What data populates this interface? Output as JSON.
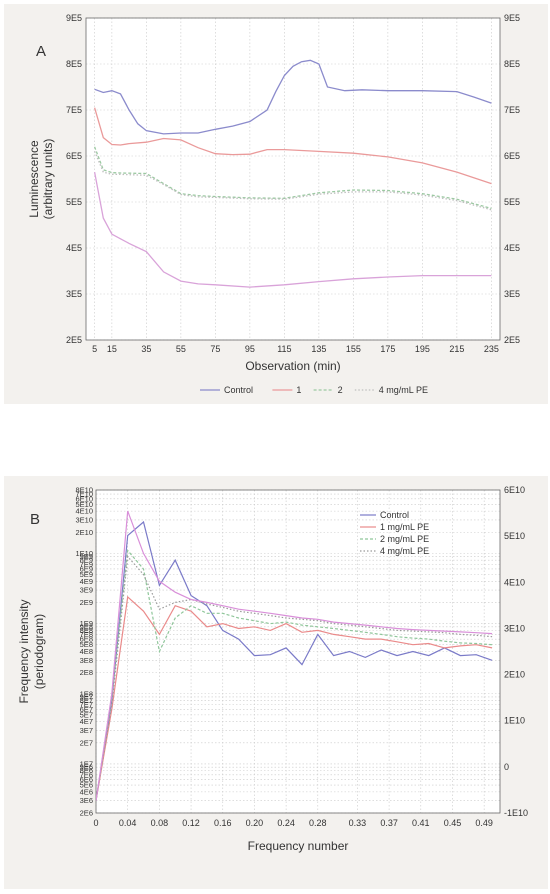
{
  "chart_data": [
    {
      "panel": "A",
      "type": "line",
      "xlabel": "Observation (min)",
      "ylabel": "Luminescence",
      "ylabel2": "(arbitrary units)",
      "xlim": [
        0,
        240
      ],
      "ylim": [
        200000,
        900000
      ],
      "xticks": [
        5,
        15,
        35,
        55,
        75,
        95,
        115,
        135,
        155,
        175,
        195,
        215,
        235
      ],
      "xtick_labels": [
        "5",
        "15",
        "35",
        "55",
        "75",
        "95",
        "115",
        "135",
        "155",
        "175",
        "195",
        "215",
        "235"
      ],
      "yticks": [
        200000,
        300000,
        400000,
        500000,
        600000,
        700000,
        800000,
        900000
      ],
      "ytick_labels": [
        "2E5",
        "3E5",
        "4E5",
        "5E5",
        "6E5",
        "7E5",
        "8E5",
        "9E5"
      ],
      "legend_position": "bottom",
      "legend_entries": [
        "Control",
        "1",
        "2",
        "4 mg/mL PE"
      ],
      "series": [
        {
          "name": "Control",
          "color": "#8b8bcc",
          "dash": "",
          "x": [
            5,
            10,
            15,
            20,
            25,
            30,
            35,
            45,
            55,
            65,
            75,
            85,
            95,
            105,
            110,
            115,
            120,
            125,
            130,
            135,
            140,
            150,
            160,
            175,
            195,
            215,
            225,
            235
          ],
          "y": [
            745000,
            738000,
            742000,
            735000,
            700000,
            670000,
            655000,
            648000,
            650000,
            650000,
            658000,
            665000,
            675000,
            700000,
            740000,
            775000,
            795000,
            805000,
            808000,
            800000,
            750000,
            742000,
            744000,
            742000,
            742000,
            740000,
            728000,
            715000
          ]
        },
        {
          "name": "1",
          "color": "#ea9a9a",
          "dash": "",
          "x": [
            5,
            10,
            15,
            20,
            25,
            35,
            45,
            55,
            65,
            75,
            85,
            95,
            105,
            115,
            125,
            135,
            155,
            175,
            195,
            215,
            235
          ],
          "y": [
            705000,
            640000,
            625000,
            624000,
            627000,
            630000,
            638000,
            635000,
            618000,
            605000,
            603000,
            604000,
            614000,
            614000,
            612000,
            610000,
            606000,
            598000,
            585000,
            565000,
            540000
          ]
        },
        {
          "name": "2",
          "color": "#9cc9a2",
          "dash": "3 2",
          "x": [
            5,
            10,
            15,
            20,
            35,
            45,
            55,
            65,
            75,
            95,
            115,
            135,
            155,
            175,
            195,
            215,
            235
          ],
          "y": [
            620000,
            570000,
            564000,
            563000,
            562000,
            540000,
            518000,
            514000,
            512000,
            509000,
            508000,
            520000,
            526000,
            525000,
            518000,
            506000,
            486000
          ]
        },
        {
          "name": "4 mg/mL PE",
          "color": "#bfbfbf",
          "dash": "1.5 2",
          "x": [
            5,
            10,
            15,
            20,
            35,
            45,
            55,
            65,
            75,
            95,
            115,
            135,
            155,
            175,
            195,
            215,
            235
          ],
          "y": [
            610000,
            565000,
            560000,
            560000,
            558000,
            538000,
            516000,
            511000,
            510000,
            507000,
            506000,
            517000,
            522000,
            522000,
            515000,
            503000,
            483000
          ]
        },
        {
          "name": "",
          "color": "#d9a3d9",
          "dash": "",
          "x": [
            5,
            10,
            15,
            20,
            25,
            35,
            45,
            55,
            65,
            75,
            95,
            115,
            135,
            155,
            175,
            195,
            215,
            235
          ],
          "y": [
            565000,
            465000,
            430000,
            420000,
            410000,
            392000,
            348000,
            328000,
            322000,
            320000,
            315000,
            320000,
            327000,
            333000,
            337000,
            340000,
            340000,
            340000
          ]
        }
      ]
    },
    {
      "panel": "B",
      "type": "line",
      "xlabel": "Frequency number",
      "ylabel": "Frequency intensity",
      "ylabel2": "(periodogram)",
      "xlim": [
        0,
        0.51
      ],
      "xticks": [
        0,
        0.04,
        0.08,
        0.12,
        0.16,
        0.2,
        0.24,
        0.28,
        0.33,
        0.37,
        0.41,
        0.45,
        0.49
      ],
      "xtick_labels": [
        "0",
        "0.04",
        "0.08",
        "0.12",
        "0.16",
        "0.20",
        "0.24",
        "0.28",
        "0.33",
        "0.37",
        "0.41",
        "0.45",
        "0.49"
      ],
      "left_axis_scale": "log",
      "left_ylim": [
        2000000,
        80000000000
      ],
      "left_tick_labels": [
        {
          "v": 80000000000.0,
          "t": "8E10"
        },
        {
          "v": 70000000000.0,
          "t": "7E10"
        },
        {
          "v": 60000000000.0,
          "t": "6E10"
        },
        {
          "v": 50000000000.0,
          "t": "5E10"
        },
        {
          "v": 40000000000.0,
          "t": "4E10"
        },
        {
          "v": 30000000000.0,
          "t": "3E10"
        },
        {
          "v": 20000000000.0,
          "t": "2E10"
        },
        {
          "v": 10000000000.0,
          "t": "1E10"
        },
        {
          "v": 9000000000.0,
          "t": "9E9"
        },
        {
          "v": 8000000000.0,
          "t": "8E9"
        },
        {
          "v": 7000000000.0,
          "t": "7E9"
        },
        {
          "v": 6000000000.0,
          "t": "6E9"
        },
        {
          "v": 5000000000.0,
          "t": "5E9"
        },
        {
          "v": 4000000000.0,
          "t": "4E9"
        },
        {
          "v": 3000000000.0,
          "t": "3E9"
        },
        {
          "v": 2000000000.0,
          "t": "2E9"
        },
        {
          "v": 1000000000.0,
          "t": "1E9"
        },
        {
          "v": 900000000.0,
          "t": "9E8"
        },
        {
          "v": 800000000.0,
          "t": "8E8"
        },
        {
          "v": 700000000.0,
          "t": "7E8"
        },
        {
          "v": 600000000.0,
          "t": "6E8"
        },
        {
          "v": 500000000.0,
          "t": "5E8"
        },
        {
          "v": 400000000.0,
          "t": "4E8"
        },
        {
          "v": 300000000.0,
          "t": "3E8"
        },
        {
          "v": 200000000.0,
          "t": "2E8"
        },
        {
          "v": 100000000.0,
          "t": "1E8"
        },
        {
          "v": 90000000.0,
          "t": "9E7"
        },
        {
          "v": 80000000.0,
          "t": "8E7"
        },
        {
          "v": 70000000.0,
          "t": "7E7"
        },
        {
          "v": 60000000.0,
          "t": "6E7"
        },
        {
          "v": 50000000.0,
          "t": "5E7"
        },
        {
          "v": 40000000.0,
          "t": "4E7"
        },
        {
          "v": 30000000.0,
          "t": "3E7"
        },
        {
          "v": 20000000.0,
          "t": "2E7"
        },
        {
          "v": 10000000.0,
          "t": "1E7"
        },
        {
          "v": 9000000.0,
          "t": "9E6"
        },
        {
          "v": 8000000.0,
          "t": "8E6"
        },
        {
          "v": 7000000.0,
          "t": "7E6"
        },
        {
          "v": 6000000.0,
          "t": "6E6"
        },
        {
          "v": 5000000.0,
          "t": "5E6"
        },
        {
          "v": 4000000.0,
          "t": "4E6"
        },
        {
          "v": 3000000.0,
          "t": "3E6"
        },
        {
          "v": 2000000.0,
          "t": "2E6"
        }
      ],
      "right_ylim": [
        -10000000000,
        60000000000
      ],
      "right_ticks": [
        60000000000,
        50000000000,
        40000000000,
        30000000000,
        20000000000,
        10000000000,
        0,
        -10000000000
      ],
      "right_tick_labels": [
        "6E10",
        "5E10",
        "4E10",
        "3E10",
        "2E10",
        "1E10",
        "0",
        "-1E10"
      ],
      "legend_position": "top-right",
      "legend_entries": [
        "Control",
        "1 mg/mL PE",
        "2 mg/mL PE",
        "4 mg/mL PE"
      ],
      "series": [
        {
          "name": "Control",
          "color": "#7a7ac8",
          "dash": "",
          "x": [
            0,
            0.02,
            0.04,
            0.06,
            0.08,
            0.1,
            0.12,
            0.14,
            0.16,
            0.18,
            0.2,
            0.22,
            0.24,
            0.26,
            0.28,
            0.3,
            0.32,
            0.34,
            0.36,
            0.38,
            0.4,
            0.42,
            0.44,
            0.46,
            0.48,
            0.5
          ],
          "y": [
            3000000,
            80000000,
            18000000000,
            28000000000,
            3500000000,
            8000000000,
            2500000000,
            1800000000,
            800000000,
            600000000,
            350000000,
            360000000,
            450000000,
            260000000,
            700000000,
            350000000,
            400000000,
            330000000,
            420000000,
            350000000,
            400000000,
            350000000,
            450000000,
            350000000,
            360000000,
            300000000
          ]
        },
        {
          "name": "1 mg/mL PE",
          "color": "#ea8a8a",
          "dash": "",
          "x": [
            0,
            0.02,
            0.04,
            0.06,
            0.08,
            0.1,
            0.12,
            0.14,
            0.16,
            0.18,
            0.2,
            0.22,
            0.24,
            0.26,
            0.28,
            0.3,
            0.32,
            0.34,
            0.36,
            0.38,
            0.4,
            0.42,
            0.44,
            0.46,
            0.48,
            0.5
          ],
          "y": [
            3000000,
            60000000,
            2400000000,
            1500000000,
            700000000,
            1800000000,
            1500000000,
            900000000,
            1000000000,
            850000000,
            900000000,
            800000000,
            1000000000,
            750000000,
            800000000,
            700000000,
            650000000,
            600000000,
            600000000,
            550000000,
            500000000,
            520000000,
            450000000,
            480000000,
            500000000,
            450000000
          ]
        },
        {
          "name": "2 mg/mL PE",
          "color": "#8fc69a",
          "dash": "3 2",
          "x": [
            0,
            0.02,
            0.04,
            0.06,
            0.08,
            0.1,
            0.12,
            0.14,
            0.16,
            0.18,
            0.2,
            0.22,
            0.24,
            0.26,
            0.28,
            0.3,
            0.32,
            0.34,
            0.36,
            0.38,
            0.4,
            0.42,
            0.44,
            0.46,
            0.48,
            0.5
          ],
          "y": [
            3000000,
            90000000,
            11000000000,
            6000000000,
            400000000,
            1200000000,
            1800000000,
            1400000000,
            1400000000,
            1200000000,
            1100000000,
            1000000000,
            1050000000,
            950000000,
            900000000,
            850000000,
            800000000,
            750000000,
            700000000,
            650000000,
            620000000,
            600000000,
            560000000,
            530000000,
            520000000,
            500000000
          ]
        },
        {
          "name": "4 mg/mL PE",
          "color": "#9a9a9a",
          "dash": "1.5 2",
          "x": [
            0,
            0.02,
            0.04,
            0.06,
            0.08,
            0.1,
            0.12,
            0.14,
            0.16,
            0.18,
            0.2,
            0.22,
            0.24,
            0.26,
            0.28,
            0.3,
            0.32,
            0.34,
            0.36,
            0.38,
            0.4,
            0.42,
            0.44,
            0.46,
            0.48,
            0.5
          ],
          "y": [
            3000000,
            70000000,
            9000000000,
            5000000000,
            1600000000,
            2000000000,
            2200000000,
            1900000000,
            1700000000,
            1500000000,
            1400000000,
            1300000000,
            1200000000,
            1150000000,
            1100000000,
            1000000000,
            950000000,
            900000000,
            850000000,
            800000000,
            780000000,
            760000000,
            740000000,
            700000000,
            680000000,
            650000000
          ]
        },
        {
          "name": "",
          "color": "#d98fd9",
          "dash": "",
          "x": [
            0,
            0.02,
            0.04,
            0.06,
            0.08,
            0.1,
            0.12,
            0.14,
            0.16,
            0.18,
            0.2,
            0.22,
            0.24,
            0.26,
            0.28,
            0.3,
            0.32,
            0.34,
            0.36,
            0.38,
            0.4,
            0.42,
            0.44,
            0.46,
            0.48,
            0.5
          ],
          "y": [
            3000000,
            100000000,
            40000000000,
            10000000000,
            4000000000,
            2800000000,
            2200000000,
            2000000000,
            1800000000,
            1600000000,
            1500000000,
            1400000000,
            1300000000,
            1200000000,
            1150000000,
            1050000000,
            1000000000,
            950000000,
            900000000,
            850000000,
            820000000,
            800000000,
            780000000,
            760000000,
            740000000,
            720000000
          ]
        }
      ]
    }
  ]
}
